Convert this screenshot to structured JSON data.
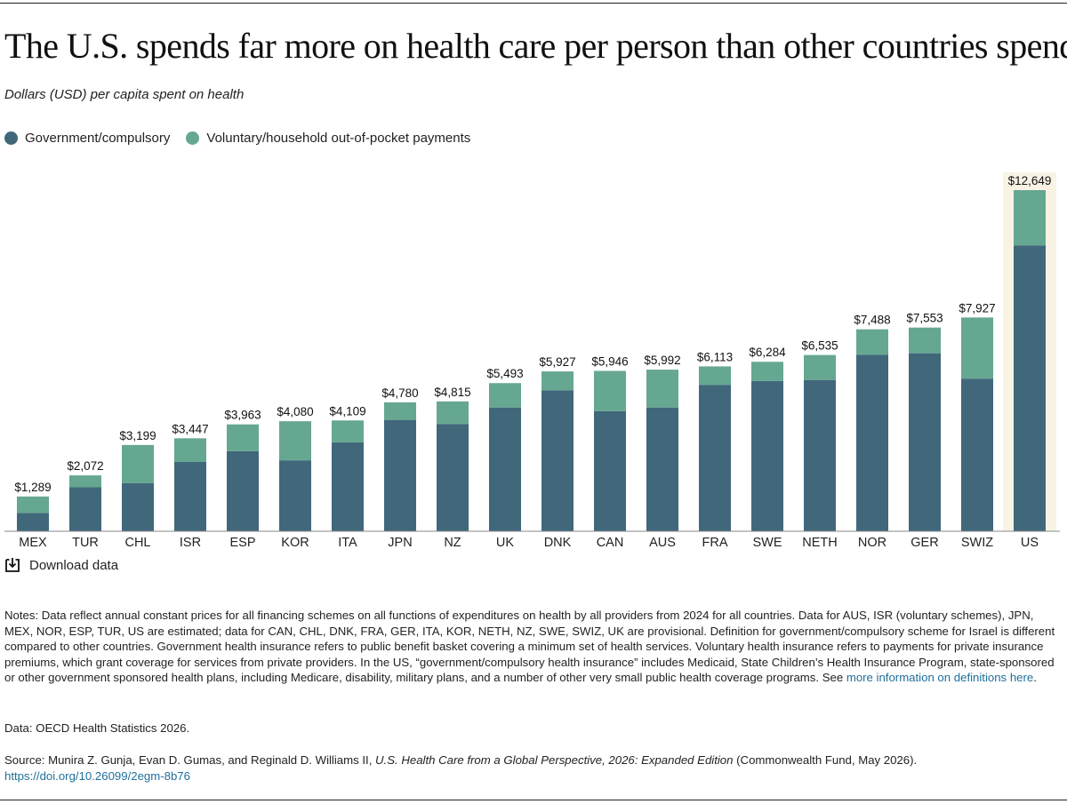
{
  "title": "The U.S. spends far more on health care per person than other countries spend.",
  "subtitle": "Dollars (USD) per capita spent on health",
  "colors": {
    "government": "#41677b",
    "voluntary": "#66a792",
    "highlight": "#f8f3e4",
    "link": "#1f6f9a"
  },
  "legend": [
    {
      "label": "Government/compulsory",
      "color": "#41677b"
    },
    {
      "label": "Voluntary/household out-of-pocket payments",
      "color": "#66a792"
    }
  ],
  "chart_data": {
    "type": "bar",
    "stacked": true,
    "categories": [
      "MEX",
      "TUR",
      "CHL",
      "ISR",
      "ESP",
      "KOR",
      "ITA",
      "JPN",
      "NZ",
      "UK",
      "DNK",
      "CAN",
      "AUS",
      "FRA",
      "SWE",
      "NETH",
      "NOR",
      "GER",
      "SWIZ",
      "US"
    ],
    "series": [
      {
        "name": "Government/compulsory",
        "values": [
          680,
          1630,
          1780,
          2570,
          2970,
          2630,
          3300,
          4130,
          3970,
          4590,
          5230,
          4450,
          4590,
          5430,
          5570,
          5610,
          6540,
          6600,
          5660,
          10600
        ]
      },
      {
        "name": "Voluntary/household out-of-pocket payments",
        "values": [
          609,
          442,
          1419,
          877,
          993,
          1450,
          809,
          650,
          845,
          903,
          697,
          1496,
          1402,
          683,
          714,
          925,
          948,
          953,
          2267,
          2049
        ]
      }
    ],
    "totals": [
      "$1,289",
      "$2,072",
      "$3,199",
      "$3,447",
      "$3,963",
      "$4,080",
      "$4,109",
      "$4,780",
      "$4,815",
      "$5,493",
      "$5,927",
      "$5,946",
      "$5,992",
      "$6,113",
      "$6,284",
      "$6,535",
      "$7,488",
      "$7,553",
      "$7,927",
      "$12,649"
    ],
    "total_values": [
      1289,
      2072,
      3199,
      3447,
      3963,
      4080,
      4109,
      4780,
      4815,
      5493,
      5927,
      5946,
      5992,
      6113,
      6284,
      6535,
      7488,
      7553,
      7927,
      12649
    ],
    "highlight_category": "US",
    "ylim": [
      0,
      12649
    ],
    "grid": false
  },
  "download_label": "Download data",
  "notes": {
    "text": "Notes: Data reflect annual constant prices for all financing schemes on all functions of expenditures on health by all providers from 2024 for all countries. Data for AUS, ISR (voluntary schemes), JPN, MEX, NOR, ESP, TUR, US are estimated; data for CAN, CHL, DNK, FRA, GER, ITA, KOR, NETH, NZ, SWE, SWIZ, UK are provisional. Definition for government/compulsory scheme for Israel is different compared to other countries. Government health insurance refers to public benefit basket covering a minimum set of health services. Voluntary health insurance refers to payments for private insurance premiums, which grant coverage for services from private providers. In the US, “government/compulsory health insurance” includes Medicaid, State Children’s Health Insurance Program, state-sponsored or other government sponsored health plans, including Medicare, disability, military plans, and a number of other very small public health coverage programs. See ",
    "link_text": "more information on definitions here",
    "end": "."
  },
  "data_source": "Data: OECD Health Statistics 2026.",
  "source": {
    "prefix": "Source: Munira Z. Gunja, Evan D. Gumas, and Reginald D. Williams II, ",
    "italic_title": "U.S. Health Care from a Global Perspective, 2026: Expanded Edition",
    "suffix": " (Commonwealth Fund, May 2026).",
    "doi": "https://doi.org/10.26099/2egm-8b76"
  }
}
